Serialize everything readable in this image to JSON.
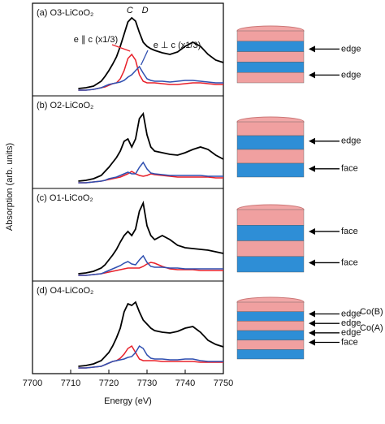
{
  "chart_data": [
    {
      "type": "line",
      "title": "(a) O3-LiCoO₂",
      "xlim": [
        7700,
        7750
      ],
      "ylim": [
        0,
        1
      ],
      "annotations": [
        "C",
        "D"
      ],
      "x": [
        7712,
        7714,
        7716,
        7718,
        7719,
        7720,
        7721,
        7722,
        7723,
        7724,
        7725,
        7726,
        7727,
        7728,
        7729,
        7730,
        7731,
        7732,
        7734,
        7736,
        7738,
        7740,
        7742,
        7744,
        7746,
        7748,
        7750
      ],
      "series": [
        {
          "color": "#000000",
          "values": [
            0.03,
            0.04,
            0.06,
            0.12,
            0.18,
            0.25,
            0.33,
            0.42,
            0.55,
            0.7,
            0.85,
            0.9,
            0.86,
            0.72,
            0.6,
            0.55,
            0.52,
            0.5,
            0.47,
            0.45,
            0.48,
            0.55,
            0.6,
            0.55,
            0.45,
            0.38,
            0.35
          ]
        },
        {
          "name": "e ∥ c (x1/3)",
          "color": "#e8202a",
          "values": [
            0.01,
            0.01,
            0.02,
            0.04,
            0.05,
            0.07,
            0.09,
            0.1,
            0.15,
            0.25,
            0.4,
            0.45,
            0.38,
            0.2,
            0.12,
            0.1,
            0.1,
            0.1,
            0.09,
            0.08,
            0.08,
            0.09,
            0.1,
            0.1,
            0.09,
            0.08,
            0.08
          ]
        },
        {
          "name": "e ⊥ c (x1/3)",
          "color": "#2f4fb0",
          "values": [
            0.01,
            0.01,
            0.02,
            0.04,
            0.06,
            0.08,
            0.09,
            0.1,
            0.11,
            0.13,
            0.17,
            0.2,
            0.25,
            0.3,
            0.22,
            0.15,
            0.13,
            0.12,
            0.12,
            0.11,
            0.12,
            0.13,
            0.13,
            0.12,
            0.11,
            0.1,
            0.1
          ]
        }
      ]
    },
    {
      "type": "line",
      "title": "(b) O2-LiCoO₂",
      "xlim": [
        7700,
        7750
      ],
      "ylim": [
        0,
        1
      ],
      "x": [
        7712,
        7714,
        7716,
        7718,
        7719,
        7720,
        7721,
        7722,
        7723,
        7724,
        7725,
        7726,
        7727,
        7728,
        7729,
        7730,
        7731,
        7732,
        7734,
        7736,
        7738,
        7740,
        7742,
        7744,
        7746,
        7748,
        7750
      ],
      "series": [
        {
          "color": "#000000",
          "values": [
            0.03,
            0.04,
            0.06,
            0.1,
            0.15,
            0.2,
            0.26,
            0.32,
            0.4,
            0.52,
            0.55,
            0.45,
            0.55,
            0.8,
            0.86,
            0.6,
            0.45,
            0.4,
            0.38,
            0.36,
            0.35,
            0.38,
            0.42,
            0.45,
            0.42,
            0.35,
            0.3
          ]
        },
        {
          "color": "#e8202a",
          "values": [
            0.01,
            0.01,
            0.02,
            0.03,
            0.04,
            0.05,
            0.06,
            0.07,
            0.08,
            0.1,
            0.12,
            0.15,
            0.12,
            0.1,
            0.09,
            0.1,
            0.12,
            0.11,
            0.1,
            0.09,
            0.08,
            0.08,
            0.08,
            0.08,
            0.08,
            0.07,
            0.07
          ]
        },
        {
          "color": "#2f4fb0",
          "values": [
            0.01,
            0.01,
            0.02,
            0.03,
            0.04,
            0.06,
            0.07,
            0.08,
            0.1,
            0.12,
            0.14,
            0.12,
            0.12,
            0.2,
            0.26,
            0.18,
            0.13,
            0.12,
            0.11,
            0.1,
            0.1,
            0.1,
            0.1,
            0.1,
            0.09,
            0.09,
            0.09
          ]
        }
      ]
    },
    {
      "type": "line",
      "title": "(c) O1-LiCoO₂",
      "xlim": [
        7700,
        7750
      ],
      "ylim": [
        0,
        1
      ],
      "x": [
        7712,
        7714,
        7716,
        7718,
        7719,
        7720,
        7721,
        7722,
        7723,
        7724,
        7725,
        7726,
        7727,
        7728,
        7729,
        7730,
        7731,
        7732,
        7734,
        7736,
        7738,
        7740,
        7742,
        7744,
        7746,
        7748,
        7750
      ],
      "series": [
        {
          "color": "#000000",
          "values": [
            0.03,
            0.04,
            0.06,
            0.1,
            0.14,
            0.2,
            0.26,
            0.33,
            0.42,
            0.5,
            0.55,
            0.5,
            0.58,
            0.8,
            0.9,
            0.62,
            0.5,
            0.45,
            0.5,
            0.45,
            0.38,
            0.35,
            0.34,
            0.33,
            0.32,
            0.3,
            0.28
          ]
        },
        {
          "color": "#e8202a",
          "values": [
            0.01,
            0.01,
            0.02,
            0.03,
            0.04,
            0.05,
            0.06,
            0.07,
            0.08,
            0.09,
            0.1,
            0.1,
            0.1,
            0.1,
            0.12,
            0.15,
            0.17,
            0.16,
            0.12,
            0.09,
            0.08,
            0.08,
            0.08,
            0.07,
            0.07,
            0.07,
            0.07
          ]
        },
        {
          "color": "#2f4fb0",
          "values": [
            0.01,
            0.01,
            0.02,
            0.03,
            0.05,
            0.07,
            0.09,
            0.11,
            0.13,
            0.16,
            0.18,
            0.15,
            0.14,
            0.2,
            0.25,
            0.17,
            0.12,
            0.11,
            0.11,
            0.1,
            0.1,
            0.09,
            0.09,
            0.09,
            0.09,
            0.09,
            0.09
          ]
        }
      ]
    },
    {
      "type": "line",
      "title": "(d) O4-LiCoO₂",
      "xlim": [
        7700,
        7750
      ],
      "ylim": [
        0,
        1
      ],
      "xticks": [
        7700,
        7710,
        7720,
        7730,
        7740,
        7750
      ],
      "xlabel": "Energy   (eV)",
      "x": [
        7712,
        7714,
        7716,
        7718,
        7719,
        7720,
        7721,
        7722,
        7723,
        7724,
        7725,
        7726,
        7727,
        7728,
        7729,
        7730,
        7731,
        7732,
        7734,
        7736,
        7738,
        7740,
        7742,
        7744,
        7746,
        7748,
        7750
      ],
      "series": [
        {
          "color": "#000000",
          "values": [
            0.03,
            0.04,
            0.06,
            0.1,
            0.15,
            0.2,
            0.28,
            0.38,
            0.5,
            0.7,
            0.8,
            0.78,
            0.82,
            0.7,
            0.6,
            0.55,
            0.5,
            0.47,
            0.45,
            0.44,
            0.46,
            0.5,
            0.52,
            0.45,
            0.35,
            0.3,
            0.27
          ]
        },
        {
          "color": "#e8202a",
          "values": [
            0.01,
            0.01,
            0.02,
            0.03,
            0.05,
            0.07,
            0.09,
            0.1,
            0.13,
            0.18,
            0.25,
            0.28,
            0.2,
            0.12,
            0.1,
            0.1,
            0.1,
            0.1,
            0.09,
            0.09,
            0.09,
            0.09,
            0.09,
            0.08,
            0.08,
            0.08,
            0.08
          ]
        },
        {
          "color": "#2f4fb0",
          "values": [
            0.01,
            0.01,
            0.02,
            0.03,
            0.05,
            0.07,
            0.09,
            0.1,
            0.11,
            0.12,
            0.14,
            0.15,
            0.2,
            0.28,
            0.25,
            0.17,
            0.13,
            0.12,
            0.12,
            0.11,
            0.11,
            0.12,
            0.12,
            0.1,
            0.09,
            0.09,
            0.09
          ]
        }
      ]
    }
  ],
  "ylabel": "Absorption   (arb. units)",
  "structures": [
    {
      "labels": [
        "edge",
        "edge"
      ]
    },
    {
      "labels": [
        "edge",
        "face"
      ]
    },
    {
      "labels": [
        "face",
        "face"
      ]
    },
    {
      "labels": [
        "edge",
        "edge",
        "edge",
        "face"
      ],
      "sites": [
        "Co(B)",
        "Co(A)"
      ]
    }
  ]
}
